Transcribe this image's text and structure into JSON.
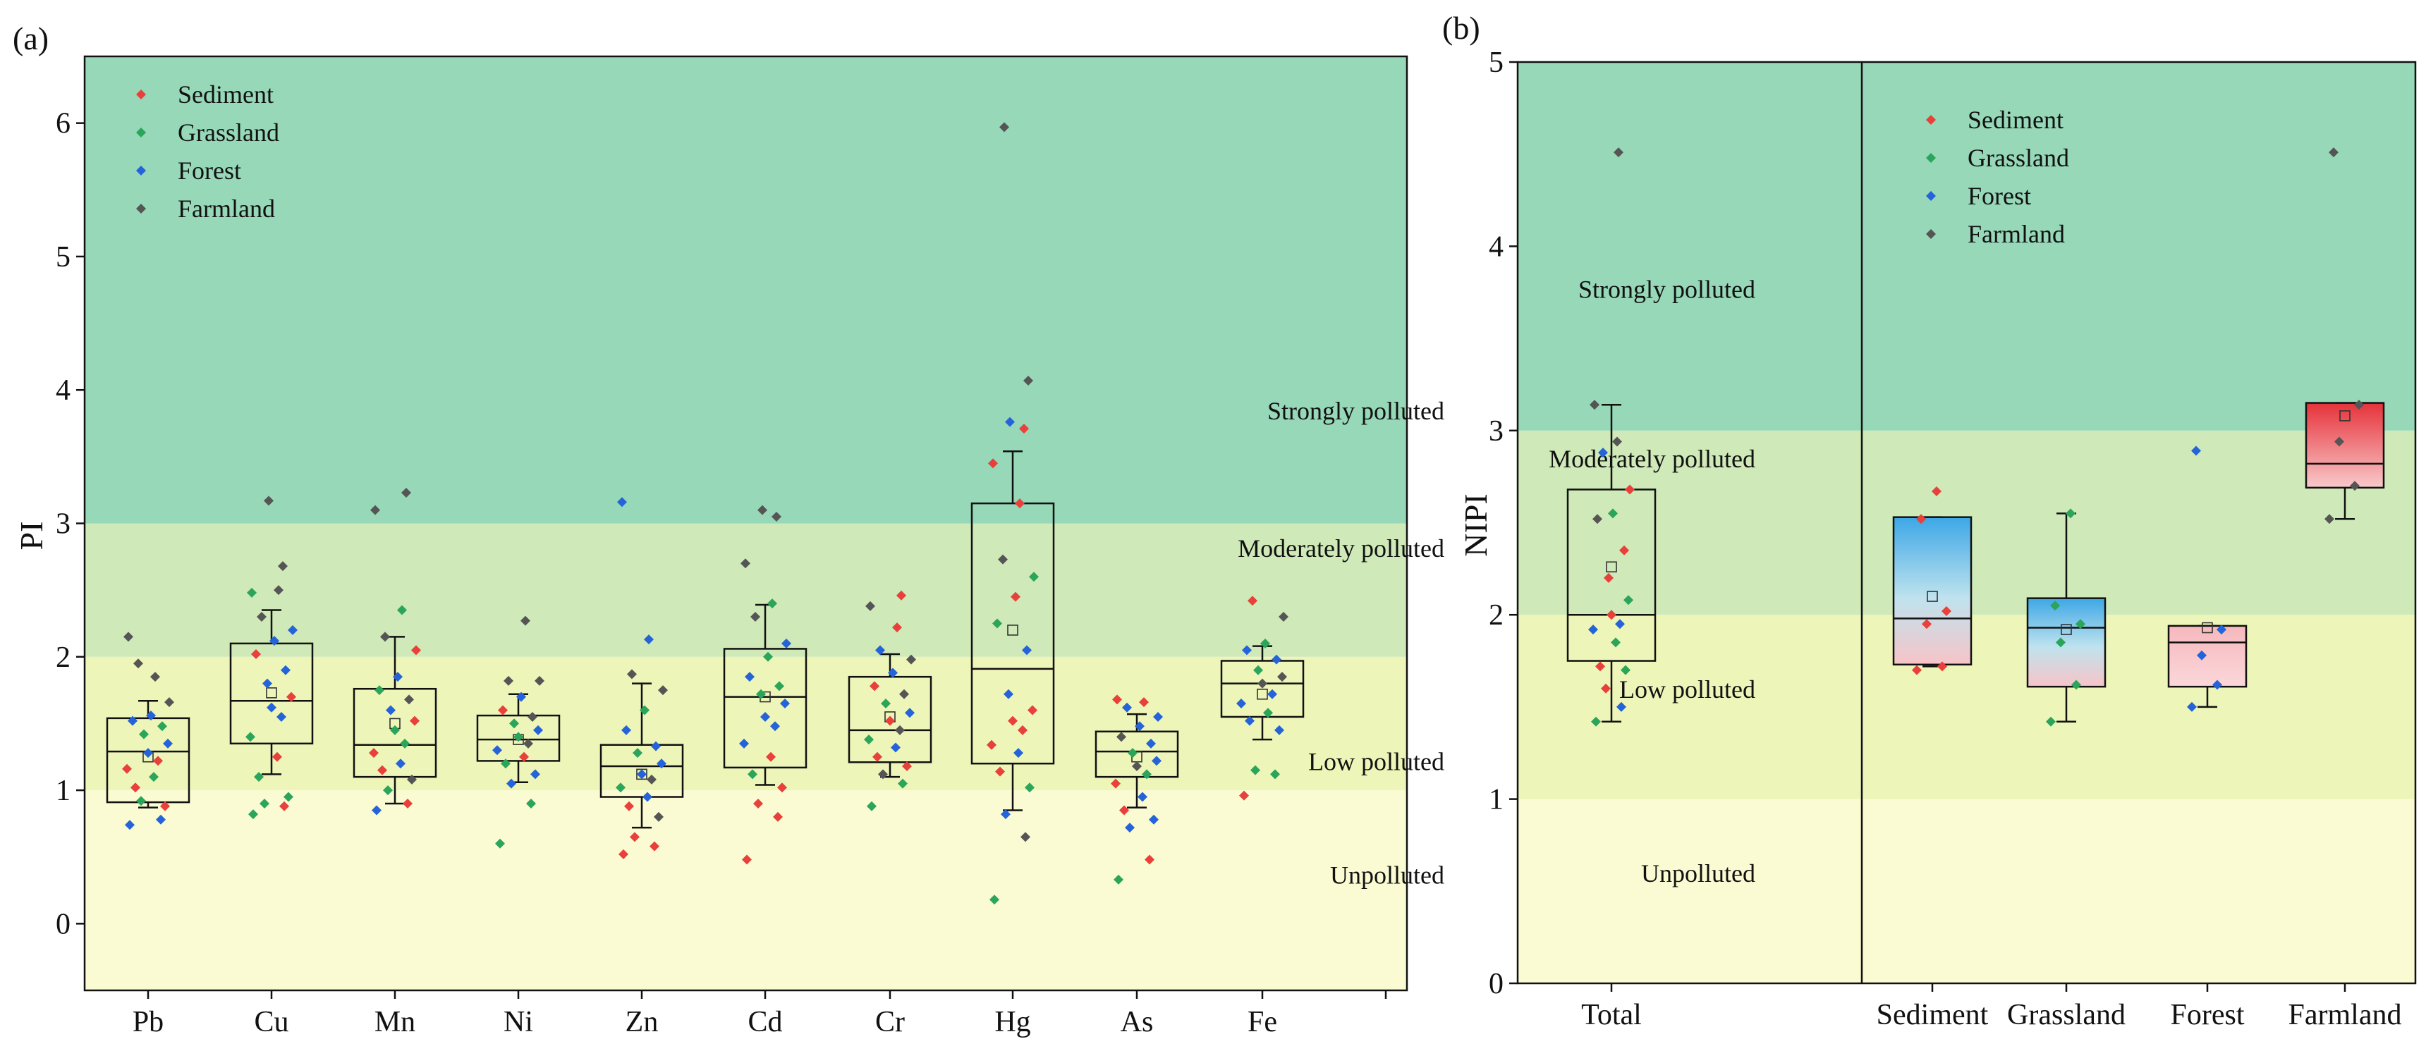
{
  "chart_data": [
    {
      "id": "a",
      "panel_label": "(a)",
      "type": "box",
      "ylabel": "PI",
      "ylim": [
        -0.5,
        6.5
      ],
      "yticks": [
        0,
        1,
        2,
        3,
        4,
        5,
        6
      ],
      "categories": [
        "Pb",
        "Cu",
        "Mn",
        "Ni",
        "Zn",
        "Cd",
        "Cr",
        "Hg",
        "As",
        "Fe"
      ],
      "zones": [
        {
          "label": "Unpolluted",
          "from": -0.5,
          "to": 1,
          "color": "#fafbd2",
          "label_y": 0.3
        },
        {
          "label": "Low polluted",
          "from": 1,
          "to": 2,
          "color": "#eef5b8",
          "label_y": 1.15
        },
        {
          "label": "Moderately polluted",
          "from": 2,
          "to": 3,
          "color": "#cfe9b8",
          "label_y": 2.75
        },
        {
          "label": "Strongly polluted",
          "from": 3,
          "to": 6.5,
          "color": "#96d8b8",
          "label_y": 3.78
        }
      ],
      "legend": [
        {
          "name": "Sediment",
          "color": "#e8403a"
        },
        {
          "name": "Grassland",
          "color": "#2aa55a"
        },
        {
          "name": "Forest",
          "color": "#2563d9"
        },
        {
          "name": "Farmland",
          "color": "#555555"
        }
      ],
      "boxes": [
        {
          "cat": "Pb",
          "whisker_low": 0.87,
          "q1": 0.91,
          "median": 1.29,
          "q3": 1.54,
          "whisker_high": 1.67,
          "mean": 1.25
        },
        {
          "cat": "Cu",
          "whisker_low": 1.12,
          "q1": 1.35,
          "median": 1.67,
          "q3": 2.1,
          "whisker_high": 2.35,
          "mean": 1.73
        },
        {
          "cat": "Mn",
          "whisker_low": 0.9,
          "q1": 1.1,
          "median": 1.34,
          "q3": 1.76,
          "whisker_high": 2.15,
          "mean": 1.5
        },
        {
          "cat": "Ni",
          "whisker_low": 1.06,
          "q1": 1.22,
          "median": 1.38,
          "q3": 1.56,
          "whisker_high": 1.72,
          "mean": 1.38
        },
        {
          "cat": "Zn",
          "whisker_low": 0.72,
          "q1": 0.95,
          "median": 1.18,
          "q3": 1.34,
          "whisker_high": 1.8,
          "mean": 1.12
        },
        {
          "cat": "Cd",
          "whisker_low": 1.04,
          "q1": 1.17,
          "median": 1.7,
          "q3": 2.06,
          "whisker_high": 2.39,
          "mean": 1.7
        },
        {
          "cat": "Cr",
          "whisker_low": 1.1,
          "q1": 1.21,
          "median": 1.45,
          "q3": 1.85,
          "whisker_high": 2.02,
          "mean": 1.55
        },
        {
          "cat": "Hg",
          "whisker_low": 0.85,
          "q1": 1.2,
          "median": 1.91,
          "q3": 3.15,
          "whisker_high": 3.54,
          "mean": 2.2
        },
        {
          "cat": "As",
          "whisker_low": 0.87,
          "q1": 1.1,
          "median": 1.29,
          "q3": 1.44,
          "whisker_high": 1.57,
          "mean": 1.25
        },
        {
          "cat": "Fe",
          "whisker_low": 1.38,
          "q1": 1.55,
          "median": 1.8,
          "q3": 1.97,
          "whisker_high": 2.08,
          "mean": 1.72
        }
      ],
      "points": [
        {
          "cat": "Pb",
          "values": [
            0.74,
            0.78,
            0.92,
            0.88,
            1.02,
            1.1,
            1.16,
            1.22,
            1.28,
            1.35,
            1.42,
            1.48,
            1.52,
            1.56,
            1.66,
            1.95,
            1.85,
            2.15
          ],
          "groups": [
            "F",
            "F",
            "G",
            "S",
            "S",
            "G",
            "S",
            "S",
            "F",
            "F",
            "G",
            "G",
            "F",
            "F",
            "K",
            "K",
            "K",
            "K"
          ]
        },
        {
          "cat": "Cu",
          "values": [
            0.82,
            0.88,
            0.9,
            0.95,
            1.1,
            1.25,
            1.4,
            1.55,
            1.62,
            1.7,
            1.8,
            1.9,
            2.02,
            2.12,
            2.2,
            2.3,
            2.5,
            2.48,
            2.68,
            3.17
          ],
          "groups": [
            "G",
            "S",
            "G",
            "G",
            "G",
            "S",
            "G",
            "F",
            "F",
            "S",
            "F",
            "F",
            "S",
            "F",
            "F",
            "K",
            "K",
            "G",
            "K",
            "K"
          ]
        },
        {
          "cat": "Mn",
          "values": [
            0.85,
            0.9,
            1.0,
            1.08,
            1.15,
            1.2,
            1.28,
            1.35,
            1.45,
            1.52,
            1.6,
            1.68,
            1.75,
            1.85,
            2.05,
            2.15,
            2.35,
            3.1,
            3.23
          ],
          "groups": [
            "F",
            "S",
            "G",
            "K",
            "S",
            "F",
            "S",
            "G",
            "G",
            "S",
            "F",
            "K",
            "G",
            "F",
            "S",
            "K",
            "G",
            "K",
            "K"
          ]
        },
        {
          "cat": "Ni",
          "values": [
            0.6,
            0.9,
            1.05,
            1.12,
            1.2,
            1.25,
            1.3,
            1.35,
            1.4,
            1.45,
            1.5,
            1.55,
            1.6,
            1.7,
            1.82,
            1.82,
            2.27
          ],
          "groups": [
            "G",
            "G",
            "F",
            "F",
            "G",
            "S",
            "F",
            "K",
            "G",
            "F",
            "G",
            "K",
            "S",
            "F",
            "K",
            "K",
            "K"
          ]
        },
        {
          "cat": "Zn",
          "values": [
            0.52,
            0.58,
            0.65,
            0.8,
            0.88,
            0.95,
            1.02,
            1.08,
            1.12,
            1.2,
            1.28,
            1.33,
            1.45,
            1.6,
            1.75,
            1.87,
            2.13,
            3.16
          ],
          "groups": [
            "S",
            "S",
            "S",
            "K",
            "S",
            "F",
            "G",
            "K",
            "F",
            "F",
            "G",
            "F",
            "F",
            "G",
            "K",
            "K",
            "F",
            "F"
          ]
        },
        {
          "cat": "Cd",
          "values": [
            0.48,
            0.8,
            0.9,
            1.02,
            1.12,
            1.25,
            1.35,
            1.48,
            1.55,
            1.65,
            1.72,
            1.78,
            1.85,
            2.0,
            2.1,
            2.3,
            2.4,
            2.7,
            3.05,
            3.1
          ],
          "groups": [
            "S",
            "S",
            "S",
            "S",
            "G",
            "S",
            "F",
            "F",
            "F",
            "F",
            "G",
            "G",
            "F",
            "G",
            "F",
            "K",
            "G",
            "K",
            "K",
            "K"
          ]
        },
        {
          "cat": "Cr",
          "values": [
            0.88,
            1.05,
            1.12,
            1.18,
            1.25,
            1.32,
            1.38,
            1.45,
            1.52,
            1.58,
            1.65,
            1.72,
            1.78,
            1.88,
            1.98,
            2.05,
            2.22,
            2.38,
            2.46
          ],
          "groups": [
            "G",
            "G",
            "K",
            "S",
            "S",
            "F",
            "G",
            "K",
            "S",
            "F",
            "G",
            "K",
            "S",
            "F",
            "K",
            "F",
            "S",
            "K",
            "S"
          ]
        },
        {
          "cat": "Hg",
          "values": [
            0.18,
            0.65,
            0.82,
            1.02,
            1.14,
            1.28,
            1.34,
            1.45,
            1.52,
            1.6,
            1.72,
            2.05,
            2.25,
            2.45,
            2.6,
            2.73,
            3.15,
            3.45,
            3.71,
            3.76,
            4.07,
            5.97
          ],
          "groups": [
            "G",
            "K",
            "F",
            "G",
            "S",
            "F",
            "S",
            "S",
            "S",
            "S",
            "F",
            "F",
            "G",
            "S",
            "G",
            "K",
            "S",
            "S",
            "S",
            "F",
            "K",
            "K"
          ]
        },
        {
          "cat": "As",
          "values": [
            0.33,
            0.48,
            0.72,
            0.78,
            0.85,
            0.95,
            1.05,
            1.12,
            1.18,
            1.22,
            1.28,
            1.35,
            1.4,
            1.48,
            1.55,
            1.62,
            1.66,
            1.68
          ],
          "groups": [
            "G",
            "S",
            "F",
            "F",
            "S",
            "F",
            "S",
            "G",
            "K",
            "F",
            "G",
            "F",
            "K",
            "F",
            "F",
            "F",
            "S",
            "S"
          ]
        },
        {
          "cat": "Fe",
          "values": [
            0.96,
            1.12,
            1.15,
            1.45,
            1.52,
            1.58,
            1.65,
            1.72,
            1.8,
            1.85,
            1.9,
            1.98,
            2.05,
            2.1,
            2.3,
            2.42
          ],
          "groups": [
            "S",
            "G",
            "G",
            "F",
            "F",
            "G",
            "F",
            "F",
            "K",
            "K",
            "G",
            "F",
            "F",
            "G",
            "K",
            "S"
          ]
        }
      ]
    },
    {
      "id": "b",
      "panel_label": "(b)",
      "type": "box",
      "ylabel": "NIPI",
      "ylim": [
        0,
        5
      ],
      "yticks": [
        0,
        1,
        2,
        3,
        4,
        5
      ],
      "categories": [
        "Total",
        "Sediment",
        "Grassland",
        "Forest",
        "Farmland"
      ],
      "zones": [
        {
          "label": "Unpolluted",
          "from": 0,
          "to": 1,
          "color": "#fafbd2",
          "label_y": 0.55
        },
        {
          "label": "Low polluted",
          "from": 1,
          "to": 2,
          "color": "#eef5b8",
          "label_y": 1.55
        },
        {
          "label": "Moderately polluted",
          "from": 2,
          "to": 3,
          "color": "#cfe9b8",
          "label_y": 2.8
        },
        {
          "label": "Strongly polluted",
          "from": 3,
          "to": 5,
          "color": "#96d8b8",
          "label_y": 3.72
        }
      ],
      "legend": [
        {
          "name": "Sediment",
          "color": "#e8403a"
        },
        {
          "name": "Grassland",
          "color": "#2aa55a"
        },
        {
          "name": "Forest",
          "color": "#2563d9"
        },
        {
          "name": "Farmland",
          "color": "#555555"
        }
      ],
      "boxes": [
        {
          "cat": "Total",
          "whisker_low": 1.42,
          "q1": 1.75,
          "median": 2.0,
          "q3": 2.68,
          "whisker_high": 3.14,
          "mean": 2.26,
          "fill": "none"
        },
        {
          "cat": "Sediment",
          "whisker_low": 1.72,
          "q1": 1.73,
          "median": 1.98,
          "q3": 2.53,
          "whisker_high": 2.53,
          "mean": 2.1,
          "fill": "gradient-blue"
        },
        {
          "cat": "Grassland",
          "whisker_low": 1.42,
          "q1": 1.61,
          "median": 1.93,
          "q3": 2.09,
          "whisker_high": 2.55,
          "mean": 1.92,
          "fill": "gradient-blue"
        },
        {
          "cat": "Forest",
          "whisker_low": 1.5,
          "q1": 1.61,
          "median": 1.85,
          "q3": 1.94,
          "whisker_high": 1.94,
          "mean": 1.93,
          "fill": "gradient-pink"
        },
        {
          "cat": "Farmland",
          "whisker_low": 2.52,
          "q1": 2.69,
          "median": 2.82,
          "q3": 3.15,
          "whisker_high": 3.15,
          "mean": 3.08,
          "fill": "gradient-red"
        }
      ],
      "points": [
        {
          "cat": "Total",
          "values": [
            1.42,
            1.5,
            1.6,
            1.7,
            1.72,
            1.85,
            1.92,
            1.95,
            2.0,
            2.08,
            2.2,
            2.35,
            2.52,
            2.55,
            2.68,
            2.88,
            2.94,
            3.14,
            4.51
          ],
          "groups": [
            "G",
            "F",
            "S",
            "G",
            "S",
            "G",
            "F",
            "F",
            "S",
            "G",
            "S",
            "S",
            "K",
            "G",
            "S",
            "F",
            "K",
            "K",
            "K"
          ]
        },
        {
          "cat": "Sediment",
          "values": [
            1.7,
            1.72,
            1.95,
            2.02,
            2.52,
            2.67
          ],
          "groups": [
            "S",
            "S",
            "S",
            "S",
            "S",
            "S"
          ]
        },
        {
          "cat": "Grassland",
          "values": [
            1.42,
            1.62,
            1.85,
            1.95,
            2.05,
            2.55
          ],
          "groups": [
            "G",
            "G",
            "G",
            "G",
            "G",
            "G"
          ]
        },
        {
          "cat": "Forest",
          "values": [
            1.5,
            1.62,
            1.78,
            1.92,
            2.89
          ],
          "groups": [
            "F",
            "F",
            "F",
            "F",
            "F"
          ]
        },
        {
          "cat": "Farmland",
          "values": [
            2.52,
            2.7,
            2.94,
            3.14,
            4.51
          ],
          "groups": [
            "K",
            "K",
            "K",
            "K",
            "K"
          ]
        }
      ]
    }
  ]
}
